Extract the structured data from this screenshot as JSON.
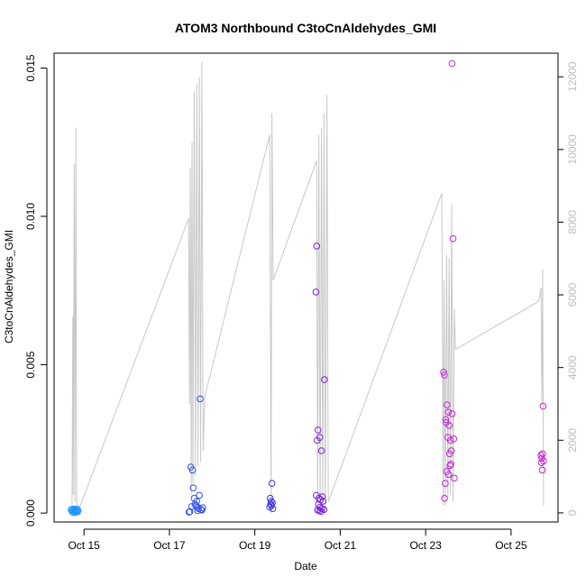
{
  "chart_data": {
    "type": "scatter",
    "title": "ATOM3 Northbound C3toCnAldehydes_GMI",
    "xlabel": "Date",
    "ylabel": "C3toCnAldehydes_GMI",
    "x_ticks": [
      "Oct 15",
      "Oct 17",
      "Oct 19",
      "Oct 21",
      "Oct 23",
      "Oct 25"
    ],
    "x_tick_positions": [
      15,
      17,
      19,
      21,
      23,
      25
    ],
    "xlim": [
      14.3,
      26.1
    ],
    "ylim": [
      -0.0003,
      0.0155
    ],
    "y_ticks": [
      0.0,
      0.005,
      0.01,
      0.015
    ],
    "y_tick_labels": [
      "0.000",
      "0.005",
      "0.010",
      "0.015"
    ],
    "y2_lim": [
      -250,
      12650
    ],
    "y2_ticks": [
      0,
      2000,
      4000,
      6000,
      8000,
      10000,
      12000
    ],
    "y2_tick_labels": [
      "0",
      "2000",
      "4000",
      "6000",
      "8000",
      "10000",
      "12000"
    ],
    "line_color": "#c8c8c8",
    "altitude_line": [
      [
        14.72,
        0
      ],
      [
        14.74,
        5400
      ],
      [
        14.75,
        500
      ],
      [
        14.77,
        9600
      ],
      [
        14.79,
        300
      ],
      [
        14.81,
        10600
      ],
      [
        14.83,
        0
      ],
      [
        14.85,
        0
      ],
      [
        17.45,
        8100
      ],
      [
        17.47,
        3000
      ],
      [
        17.49,
        9500
      ],
      [
        17.51,
        500
      ],
      [
        17.53,
        10200
      ],
      [
        17.55,
        800
      ],
      [
        17.58,
        11600
      ],
      [
        17.61,
        1000
      ],
      [
        17.64,
        11800
      ],
      [
        17.67,
        1300
      ],
      [
        17.7,
        12000
      ],
      [
        17.73,
        1400
      ],
      [
        17.76,
        12400
      ],
      [
        17.79,
        1700
      ],
      [
        17.83,
        3200
      ],
      [
        19.35,
        10400
      ],
      [
        19.38,
        0
      ],
      [
        19.4,
        11000
      ],
      [
        19.43,
        6400
      ],
      [
        20.45,
        9700
      ],
      [
        20.47,
        0
      ],
      [
        20.5,
        10400
      ],
      [
        20.53,
        0
      ],
      [
        20.56,
        10600
      ],
      [
        20.59,
        0
      ],
      [
        20.62,
        11000
      ],
      [
        20.65,
        0
      ],
      [
        20.69,
        11500
      ],
      [
        20.72,
        300
      ],
      [
        23.38,
        8800
      ],
      [
        23.41,
        200
      ],
      [
        23.43,
        6400
      ],
      [
        23.46,
        200
      ],
      [
        23.49,
        7100
      ],
      [
        23.52,
        400
      ],
      [
        23.55,
        7000
      ],
      [
        23.58,
        500
      ],
      [
        23.61,
        8500
      ],
      [
        23.64,
        300
      ],
      [
        23.67,
        5600
      ],
      [
        23.7,
        4500
      ],
      [
        25.62,
        5800
      ],
      [
        25.66,
        5900
      ],
      [
        25.7,
        6200
      ],
      [
        25.72,
        3000
      ],
      [
        25.74,
        6700
      ],
      [
        25.76,
        200
      ]
    ],
    "series": [
      {
        "color": "#1e90ff",
        "points": [
          [
            14.7,
            0.00012
          ],
          [
            14.72,
            8e-05
          ],
          [
            14.74,
            0.0001
          ],
          [
            14.76,
            0.00014
          ],
          [
            14.78,
            6e-05
          ],
          [
            14.8,
            0.00011
          ],
          [
            14.82,
            7e-05
          ],
          [
            14.84,
            0.00013
          ],
          [
            14.86,
            9e-05
          ],
          [
            14.73,
            3e-05
          ],
          [
            14.79,
            2e-05
          ],
          [
            14.85,
            4e-05
          ]
        ]
      },
      {
        "color": "#3050e8",
        "points": [
          [
            17.5,
            0.00155
          ],
          [
            17.54,
            0.00145
          ],
          [
            17.56,
            0.00085
          ],
          [
            17.58,
            0.0005
          ],
          [
            17.6,
            0.0003
          ],
          [
            17.62,
            0.00025
          ],
          [
            17.64,
            0.0004
          ],
          [
            17.66,
            0.0002
          ],
          [
            17.68,
            0.00015
          ],
          [
            17.7,
            0.0006
          ],
          [
            17.72,
            0.00385
          ],
          [
            17.74,
            0.00012
          ],
          [
            17.76,
            0.0001
          ],
          [
            17.78,
            0.00018
          ],
          [
            17.52,
            0.00022
          ],
          [
            17.48,
            5e-05
          ],
          [
            17.46,
            3e-05
          ],
          [
            17.66,
            8e-05
          ]
        ]
      },
      {
        "color": "#3a33e0",
        "points": [
          [
            19.4,
            0.001
          ],
          [
            19.36,
            0.0005
          ],
          [
            19.38,
            0.0004
          ],
          [
            19.41,
            0.00035
          ],
          [
            19.37,
            0.0003
          ],
          [
            19.39,
            0.00025
          ],
          [
            19.35,
            0.0002
          ],
          [
            19.42,
            0.00015
          ]
        ]
      },
      {
        "color": "#7a22d8",
        "points": [
          [
            20.45,
            0.009
          ],
          [
            20.43,
            0.00745
          ],
          [
            20.48,
            0.0028
          ],
          [
            20.52,
            0.00255
          ],
          [
            20.46,
            0.00245
          ],
          [
            20.56,
            0.0021
          ],
          [
            20.63,
            0.0045
          ],
          [
            20.44,
            0.0006
          ],
          [
            20.5,
            0.0005
          ],
          [
            20.54,
            0.00045
          ],
          [
            20.58,
            0.00055
          ],
          [
            20.6,
            0.0004
          ],
          [
            20.49,
            0.0003
          ],
          [
            20.53,
            0.0002
          ],
          [
            20.57,
            0.00015
          ],
          [
            20.47,
            0.0001
          ],
          [
            20.51,
            8e-05
          ],
          [
            20.55,
            5e-05
          ],
          [
            20.62,
            0.00012
          ]
        ]
      },
      {
        "color": "#c026d3",
        "points": [
          [
            23.62,
            0.01515
          ],
          [
            23.64,
            0.00925
          ],
          [
            23.42,
            0.00475
          ],
          [
            23.44,
            0.00465
          ],
          [
            23.5,
            0.00365
          ],
          [
            23.47,
            0.00315
          ],
          [
            23.48,
            0.00305
          ],
          [
            23.53,
            0.0034
          ],
          [
            23.55,
            0.00295
          ],
          [
            23.58,
            0.00245
          ],
          [
            23.62,
            0.00335
          ],
          [
            23.66,
            0.0025
          ],
          [
            23.52,
            0.00255
          ],
          [
            23.56,
            0.002
          ],
          [
            23.6,
            0.0021
          ],
          [
            23.49,
            0.0014
          ],
          [
            23.46,
            0.001
          ],
          [
            23.54,
            0.0013
          ],
          [
            23.59,
            0.00165
          ],
          [
            23.67,
            0.00118
          ],
          [
            23.44,
            0.0005
          ],
          [
            23.57,
            0.0016
          ]
        ]
      },
      {
        "color": "#c420c8",
        "points": [
          [
            25.75,
            0.0036
          ],
          [
            25.7,
            0.00195
          ],
          [
            25.72,
            0.00185
          ],
          [
            25.74,
            0.002
          ],
          [
            25.71,
            0.0017
          ],
          [
            25.76,
            0.00175
          ],
          [
            25.73,
            0.00145
          ]
        ]
      }
    ]
  }
}
